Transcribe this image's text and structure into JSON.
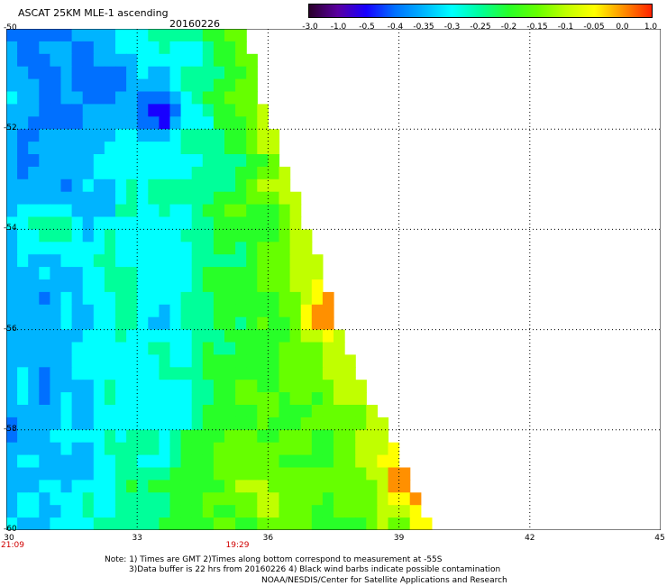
{
  "header": {
    "title": "ASCAT 25KM MLE-1 ascending",
    "date": "20160226"
  },
  "colorbar": {
    "labels": [
      "-3.0",
      "-1.0",
      "-0.5",
      "-0.4",
      "-0.35",
      "-0.3",
      "-0.25",
      "-0.2",
      "-0.15",
      "-0.1",
      "-0.05",
      "0.0",
      "1.0"
    ],
    "colors": [
      "#2a002a",
      "#5a00a0",
      "#1800ff",
      "#0070ff",
      "#00b4ff",
      "#00ffff",
      "#00ff9a",
      "#28ff28",
      "#66ff00",
      "#c0ff00",
      "#ffff00",
      "#ff9000",
      "#ff2200"
    ]
  },
  "map": {
    "lon_range": [
      30,
      45
    ],
    "lat_range": [
      -50,
      -60
    ],
    "x_ticks": [
      "30",
      "33",
      "36",
      "39",
      "42",
      "45"
    ],
    "y_ticks": [
      "-50",
      "-52",
      "-54",
      "-56",
      "-58",
      "-60"
    ],
    "time_labels": [
      {
        "lon": 30,
        "text": "21:09"
      },
      {
        "lon": 35.3,
        "text": "19:29"
      }
    ],
    "swath_edge": [
      [
        35.4,
        -50
      ],
      [
        35.6,
        -51
      ],
      [
        36.0,
        -52
      ],
      [
        36.4,
        -53
      ],
      [
        36.8,
        -54
      ],
      [
        37.2,
        -55
      ],
      [
        37.5,
        -56
      ],
      [
        38.0,
        -57
      ],
      [
        38.6,
        -58
      ],
      [
        39.1,
        -59
      ],
      [
        39.6,
        -60
      ]
    ],
    "features": [
      {
        "type": "low",
        "lon": 33.6,
        "lat": -51.7,
        "value": -0.4
      },
      {
        "type": "high",
        "lon": 37.3,
        "lat": -55.6,
        "value": 0.0
      },
      {
        "type": "high",
        "lon": 39.1,
        "lat": -59.0,
        "value": 0.0
      }
    ]
  },
  "notes": {
    "line1": "Note: 1) Times are GMT 2)Times along bottom correspond to measurement at -55S",
    "line2": "3)Data buffer is 22 hrs from 20160226 4) Black wind barbs indicate possible contamination",
    "line3": "NOAA/NESDIS/Center for Satellite Applications and Research"
  }
}
